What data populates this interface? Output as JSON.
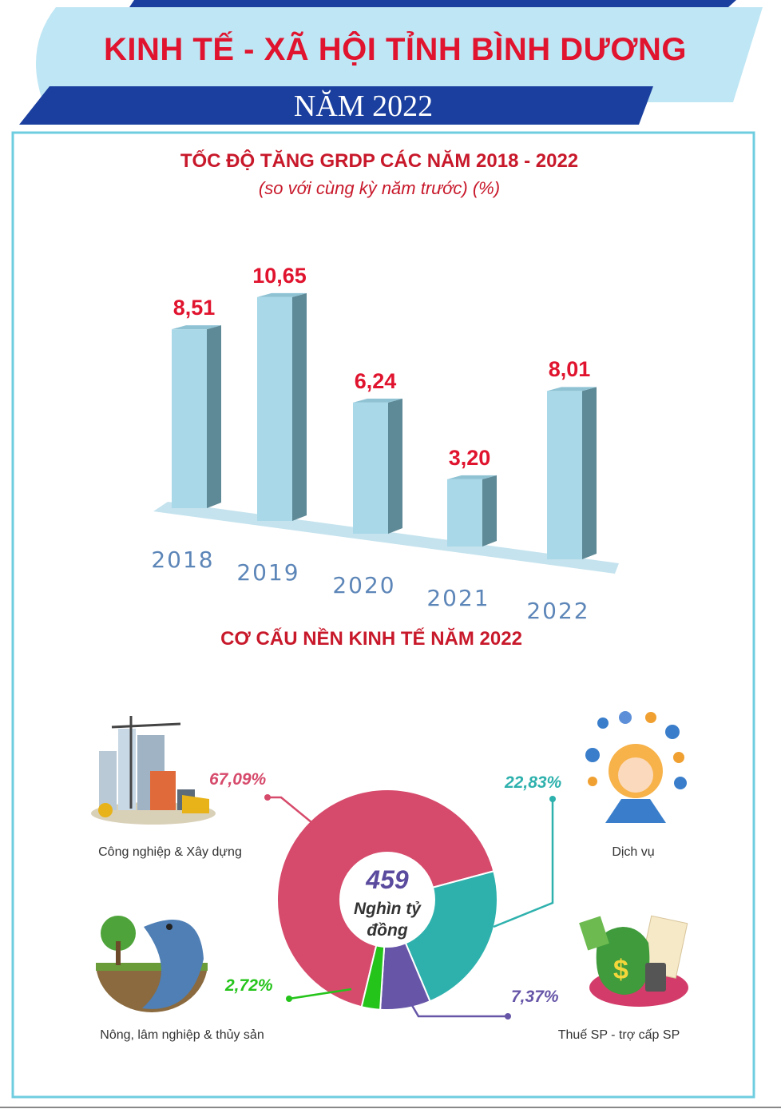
{
  "header": {
    "title": "KINH TẾ - XÃ HỘI TỈNH BÌNH DƯƠNG",
    "year": "NĂM 2022"
  },
  "colors": {
    "title_red": "#e0142e",
    "navy": "#1a3f9e",
    "light_blue": "#bfe6f4",
    "bar_front": "#a9d8e8",
    "bar_side": "#5e8996",
    "frame": "#6fcde0",
    "industry": "#d64a6b",
    "services": "#2eb1ad",
    "taxes": "#6756a8",
    "agriculture": "#25c41b"
  },
  "chart_data": [
    {
      "type": "bar",
      "title": "TỐC ĐỘ TĂNG GRDP CÁC NĂM 2018 - 2022",
      "subtitle": "(so với cùng kỳ năm trước) (%)",
      "categories": [
        "2018",
        "2019",
        "2020",
        "2021",
        "2022"
      ],
      "values": [
        8.51,
        10.65,
        6.24,
        3.2,
        8.01
      ],
      "value_labels": [
        "8,51",
        "10,65",
        "6,24",
        "3,20",
        "8,01"
      ],
      "ylim": [
        0,
        11
      ],
      "grid": false
    },
    {
      "type": "pie",
      "title": "CƠ CẤU NỀN KINH TẾ NĂM 2022",
      "center_total": "459",
      "center_unit": "Nghìn tỷ đồng",
      "slices": [
        {
          "name": "Công nghiệp & Xây dựng",
          "value": 67.09,
          "label": "67,09%",
          "color": "#d64a6b"
        },
        {
          "name": "Dịch vụ",
          "value": 22.83,
          "label": "22,83%",
          "color": "#2eb1ad"
        },
        {
          "name": "Thuế SP - trợ cấp SP",
          "value": 7.37,
          "label": "7,37%",
          "color": "#6756a8"
        },
        {
          "name": "Nông, lâm nghiệp & thủy sản",
          "value": 2.72,
          "label": "2,72%",
          "color": "#25c41b"
        }
      ]
    }
  ],
  "icons": [
    "construction-site-icon",
    "customer-service-agent-icon",
    "fish-and-tree-icon",
    "money-bag-tax-icon"
  ]
}
